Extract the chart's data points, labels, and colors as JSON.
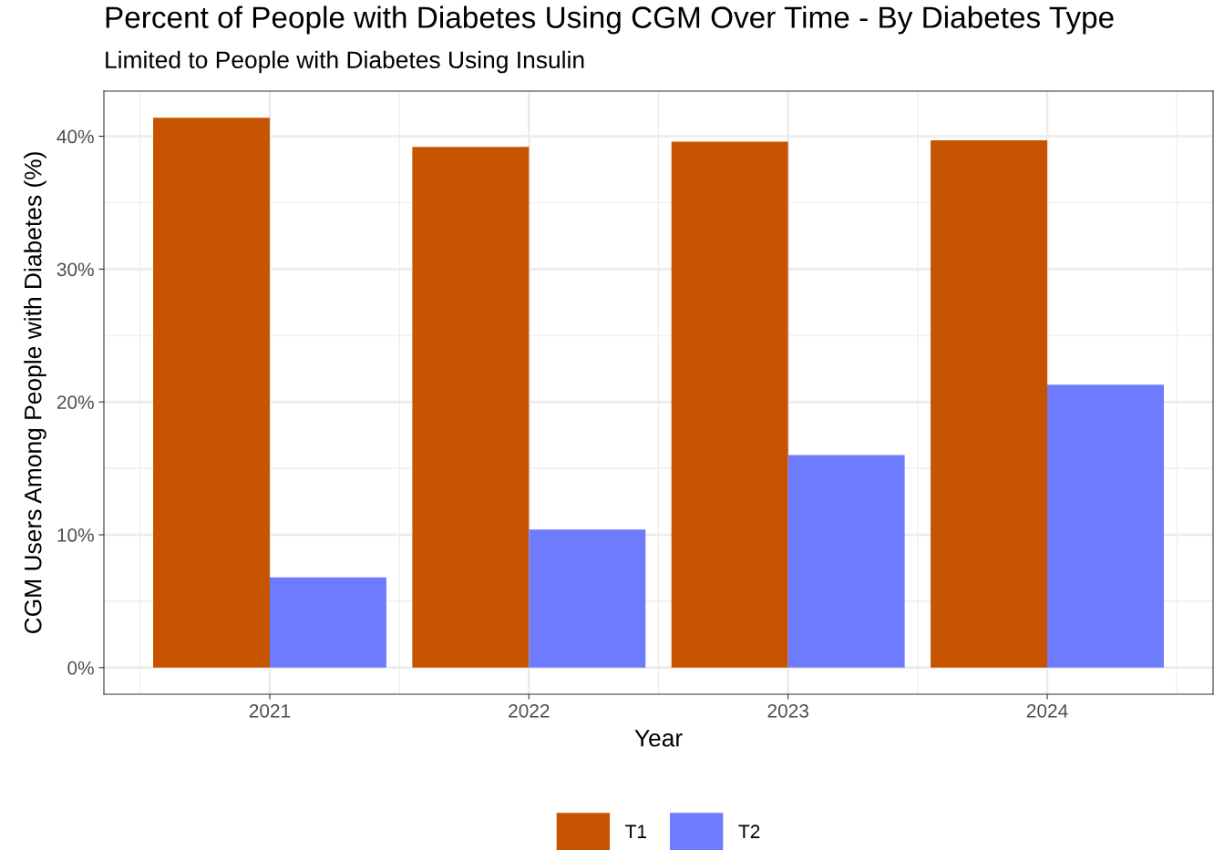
{
  "chart_data": {
    "type": "bar",
    "title": "Percent of People with Diabetes Using CGM Over Time - By Diabetes Type",
    "subtitle": "Limited to People with Diabetes Using Insulin",
    "xlabel": "Year",
    "ylabel": "CGM Users Among People with Diabetes (%)",
    "x": [
      2021,
      2022,
      2023,
      2024
    ],
    "series": [
      {
        "name": "T1",
        "color": "#c75400",
        "values": [
          41.4,
          39.2,
          39.6,
          39.7
        ]
      },
      {
        "name": "T2",
        "color": "#6f7bfd",
        "values": [
          6.8,
          10.4,
          16.0,
          21.3
        ]
      }
    ],
    "xlim": [
      2020.36,
      2024.64
    ],
    "xticks": [
      2021,
      2022,
      2023,
      2024
    ],
    "ylim": [
      -2.0,
      43.4
    ],
    "yticks": [
      {
        "value": 0,
        "label": "0%"
      },
      {
        "value": 10,
        "label": "10%"
      },
      {
        "value": 20,
        "label": "20%"
      },
      {
        "value": 30,
        "label": "30%"
      },
      {
        "value": 40,
        "label": "40%"
      }
    ],
    "grid": true,
    "legend": "bottom"
  }
}
